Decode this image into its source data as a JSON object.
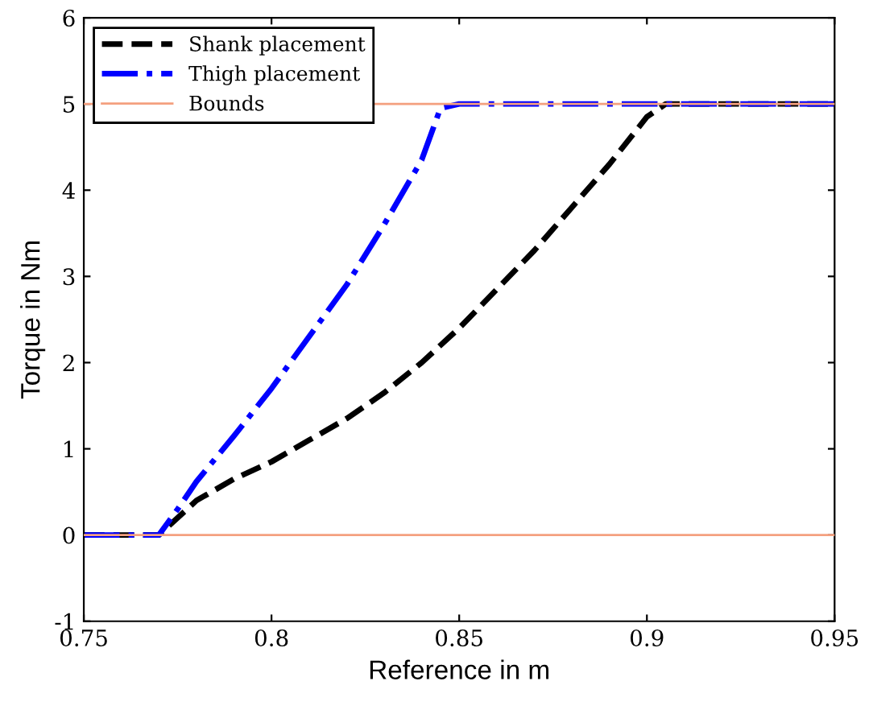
{
  "chart_data": {
    "type": "line",
    "xlabel": "Reference in m",
    "ylabel": "Torque in Nm",
    "xlim": [
      0.75,
      0.95
    ],
    "ylim": [
      -1,
      6
    ],
    "xticks": [
      0.75,
      0.8,
      0.85,
      0.9,
      0.95
    ],
    "yticks": [
      -1,
      0,
      1,
      2,
      3,
      4,
      5,
      6
    ],
    "grid": false,
    "legend": "top left",
    "marker": "none",
    "series": [
      {
        "name": "Shank placement",
        "color": "#000000",
        "line_style": "dashed",
        "x": [
          0.75,
          0.77,
          0.78,
          0.79,
          0.8,
          0.81,
          0.82,
          0.83,
          0.84,
          0.85,
          0.86,
          0.87,
          0.88,
          0.89,
          0.9,
          0.905,
          0.95
        ],
        "values": [
          0,
          0,
          0.4,
          0.65,
          0.85,
          1.1,
          1.35,
          1.65,
          2.0,
          2.4,
          2.85,
          3.3,
          3.8,
          4.3,
          4.85,
          5,
          5
        ]
      },
      {
        "name": "Thigh placement",
        "color": "#0000ff",
        "line_style": "dashdot",
        "x": [
          0.75,
          0.77,
          0.775,
          0.78,
          0.79,
          0.8,
          0.81,
          0.82,
          0.83,
          0.84,
          0.845,
          0.85,
          0.95
        ],
        "values": [
          0,
          0,
          0.3,
          0.62,
          1.15,
          1.7,
          2.3,
          2.9,
          3.6,
          4.35,
          4.95,
          5,
          5
        ]
      }
    ],
    "ref_lines": [
      {
        "axis": "y",
        "value": 5,
        "label": "Bounds",
        "color": "#f4a07f",
        "line_style": "solid"
      },
      {
        "axis": "y",
        "value": 0,
        "color": "#f4a07f",
        "line_style": "solid"
      }
    ]
  }
}
